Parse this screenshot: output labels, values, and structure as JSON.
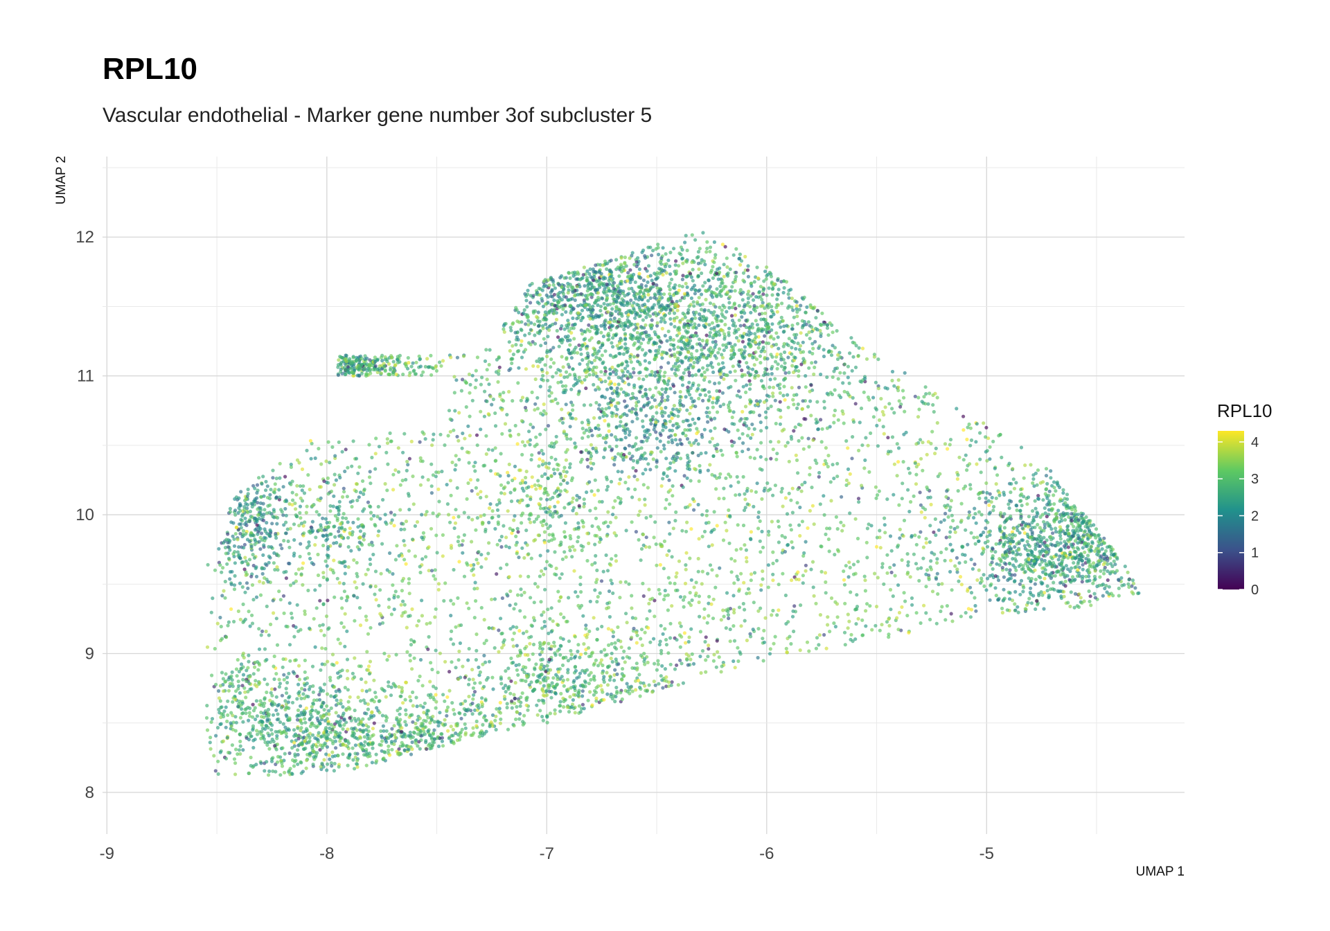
{
  "chart_data": {
    "type": "scatter",
    "title": "RPL10",
    "subtitle": "Vascular endothelial - Marker gene number 3of subcluster 5",
    "xlabel": "UMAP 1",
    "ylabel": "UMAP 2",
    "xlim": [
      -9.02,
      -4.1
    ],
    "ylim": [
      7.7,
      12.58
    ],
    "x_ticks": [
      -9,
      -8,
      -7,
      -6,
      -5
    ],
    "x_tick_labels": [
      "-9",
      "-8",
      "-7",
      "-6",
      "-5"
    ],
    "y_ticks": [
      8,
      9,
      10,
      11,
      12
    ],
    "y_tick_labels": [
      "8",
      "9",
      "10",
      "11",
      "12"
    ],
    "grid": true,
    "legend": {
      "title": "RPL10",
      "position": "right",
      "range": [
        0,
        4.3
      ],
      "ticks": [
        0,
        1,
        2,
        3,
        4
      ],
      "tick_labels": [
        "0",
        "1",
        "2",
        "3",
        "4"
      ],
      "colors": [
        "#440154",
        "#3b528b",
        "#21918c",
        "#5ec962",
        "#fde725"
      ]
    },
    "point_color_mapping": "viridis",
    "point_opacity": 0.65,
    "n_points_approx": 7000
  }
}
